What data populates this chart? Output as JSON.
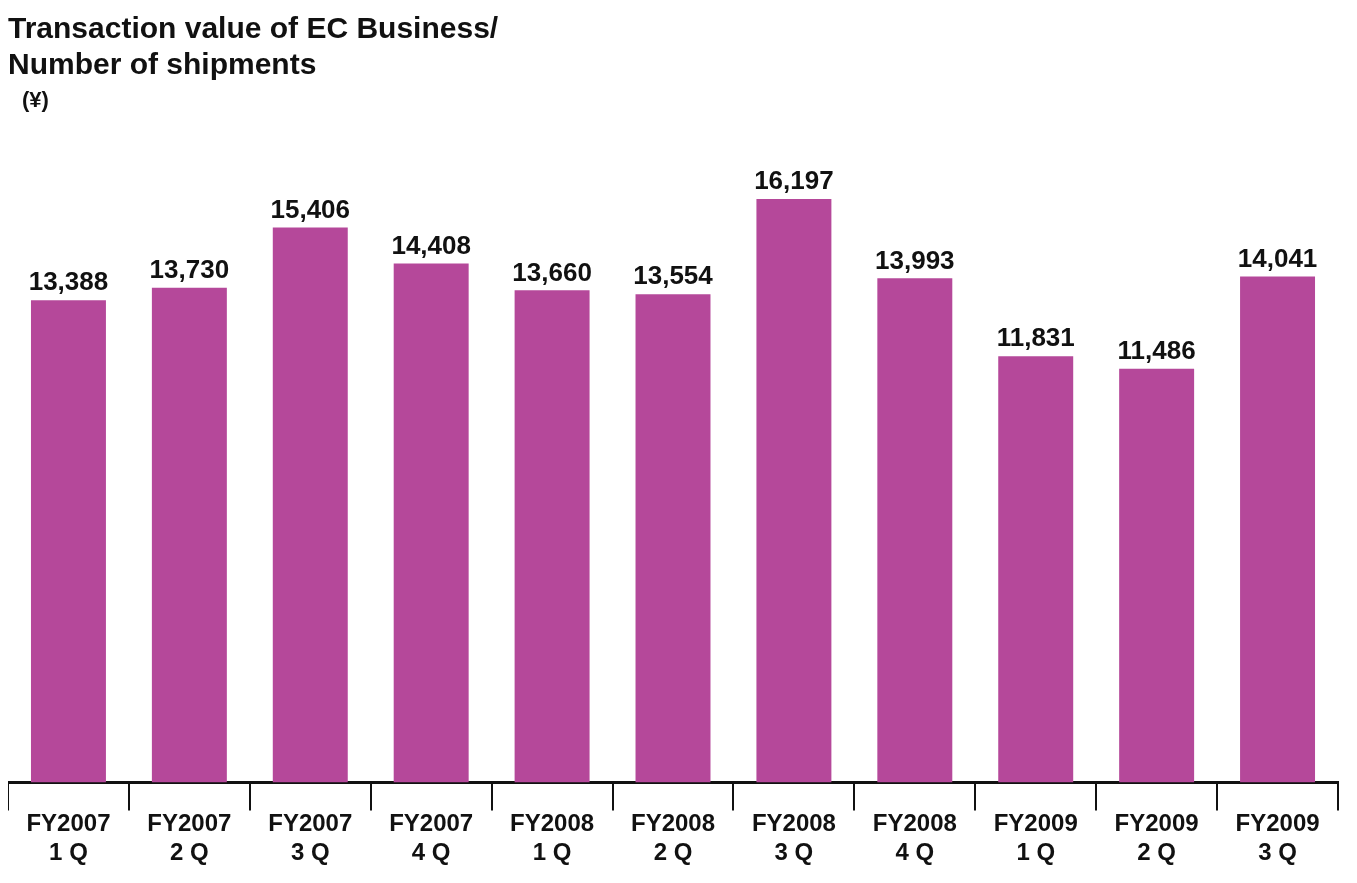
{
  "chart_data": {
    "type": "bar",
    "title": "Transaction value of EC Business/\nNumber of shipments",
    "ylabel": "(¥)",
    "categories": [
      "FY2007\n1 Q",
      "FY2007\n2 Q",
      "FY2007\n3 Q",
      "FY2007\n4 Q",
      "FY2008\n1 Q",
      "FY2008\n2 Q",
      "FY2008\n3 Q",
      "FY2008\n4 Q",
      "FY2009\n1 Q",
      "FY2009\n2 Q",
      "FY2009\n3 Q"
    ],
    "values": [
      13388,
      13730,
      15406,
      14408,
      13660,
      13554,
      16197,
      13993,
      11831,
      11486,
      14041
    ],
    "value_labels": [
      "13,388",
      "13,730",
      "15,406",
      "14,408",
      "13,660",
      "13,554",
      "16,197",
      "13,993",
      "11,831",
      "11,486",
      "14,041"
    ],
    "color": "#b5489a",
    "grid": false,
    "legend": false
  }
}
